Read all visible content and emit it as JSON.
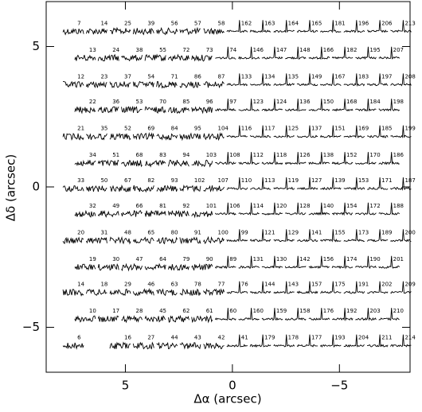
{
  "chart_data": {
    "type": "fiber-map",
    "xlabel": "Δα (arcsec)",
    "ylabel": "Δδ (arcsec)",
    "xlim": [
      8.7,
      -8.3
    ],
    "ylim": [
      -6.6,
      6.6
    ],
    "xticks": [
      5,
      0,
      {
        "value": -5,
        "label": "−5"
      }
    ],
    "yticks": [
      5,
      0,
      {
        "value": -5,
        "label": "−5"
      }
    ],
    "rows": [
      {
        "y": 5.6,
        "x": [
          7.43,
          6.34,
          5.24,
          4.15,
          3.06,
          1.97,
          0.87,
          -0.22,
          -1.31,
          -2.41,
          -3.5,
          -4.59,
          -5.69,
          -6.78,
          -7.87
        ],
        "labels": [
          "7",
          "14",
          "25",
          "39",
          "56",
          "57",
          "58",
          "162",
          "163",
          "164",
          "165",
          "181",
          "196",
          "206",
          "213"
        ]
      },
      {
        "y": 4.65,
        "x": [
          6.88,
          5.79,
          4.7,
          3.6,
          2.51,
          1.42,
          0.32,
          -0.77,
          -1.86,
          -2.95,
          -4.05,
          -5.14,
          -6.23,
          -7.32
        ],
        "labels": [
          "13",
          "24",
          "38",
          "55",
          "72",
          "73",
          "74",
          "146",
          "147",
          "148",
          "166",
          "182",
          "195",
          "207"
        ]
      },
      {
        "y": 3.7,
        "x": [
          7.43,
          6.34,
          5.24,
          4.15,
          3.06,
          1.97,
          0.87,
          -0.22,
          -1.31,
          -2.41,
          -3.5,
          -4.59,
          -5.69,
          -6.78,
          -7.87
        ],
        "labels": [
          "12",
          "23",
          "37",
          "54",
          "71",
          "86",
          "87",
          "133",
          "134",
          "135",
          "149",
          "167",
          "183",
          "197",
          "208"
        ]
      },
      {
        "y": 2.8,
        "x": [
          6.88,
          5.79,
          4.7,
          3.6,
          2.51,
          1.42,
          0.32,
          -0.77,
          -1.86,
          -2.95,
          -4.05,
          -5.14,
          -6.23,
          -7.32
        ],
        "labels": [
          "22",
          "36",
          "53",
          "70",
          "85",
          "96",
          "97",
          "123",
          "124",
          "136",
          "150",
          "168",
          "184",
          "198"
        ]
      },
      {
        "y": 1.85,
        "x": [
          7.43,
          6.34,
          5.24,
          4.15,
          3.06,
          1.97,
          0.87,
          -0.22,
          -1.31,
          -2.41,
          -3.5,
          -4.59,
          -5.69,
          -6.78,
          -7.87
        ],
        "labels": [
          "21",
          "35",
          "52",
          "69",
          "84",
          "95",
          "104",
          "116",
          "117",
          "125",
          "137",
          "151",
          "169",
          "185",
          "199"
        ]
      },
      {
        "y": 0.9,
        "x": [
          6.88,
          5.79,
          4.7,
          3.6,
          2.51,
          1.42,
          0.32,
          -0.77,
          -1.86,
          -2.95,
          -4.05,
          -5.14,
          -6.23,
          -7.32
        ],
        "labels": [
          "34",
          "51",
          "68",
          "83",
          "94",
          "103",
          "108",
          "112",
          "118",
          "126",
          "138",
          "152",
          "170",
          "186"
        ]
      },
      {
        "y": 0,
        "x": [
          7.43,
          6.34,
          5.24,
          4.15,
          3.06,
          1.97,
          0.87,
          -0.22,
          -1.31,
          -2.41,
          -3.5,
          -4.59,
          -5.69,
          -6.78,
          -7.87
        ],
        "labels": [
          "33",
          "50",
          "67",
          "82",
          "93",
          "102",
          "107",
          "110",
          "113",
          "119",
          "127",
          "139",
          "153",
          "171",
          "187"
        ]
      },
      {
        "y": -0.9,
        "x": [
          6.88,
          5.79,
          4.7,
          3.6,
          2.51,
          1.42,
          0.32,
          -0.77,
          -1.86,
          -2.95,
          -4.05,
          -5.14,
          -6.23,
          -7.32
        ],
        "labels": [
          "32",
          "49",
          "66",
          "81",
          "92",
          "101",
          "106",
          "114",
          "120",
          "128",
          "140",
          "154",
          "172",
          "188"
        ]
      },
      {
        "y": -1.85,
        "x": [
          7.43,
          6.34,
          5.24,
          4.15,
          3.06,
          1.97,
          0.87,
          -0.22,
          -1.31,
          -2.41,
          -3.5,
          -4.59,
          -5.69,
          -6.78,
          -7.87
        ],
        "labels": [
          "20",
          "31",
          "48",
          "65",
          "80",
          "91",
          "100",
          "99",
          "121",
          "129",
          "141",
          "155",
          "173",
          "189",
          "200"
        ]
      },
      {
        "y": -2.8,
        "x": [
          6.88,
          5.79,
          4.7,
          3.6,
          2.51,
          1.42,
          0.32,
          -0.77,
          -1.86,
          -2.95,
          -4.05,
          -5.14,
          -6.23,
          -7.32
        ],
        "labels": [
          "19",
          "30",
          "47",
          "64",
          "79",
          "90",
          "89",
          "131",
          "130",
          "142",
          "156",
          "174",
          "190",
          "201"
        ]
      },
      {
        "y": -3.7,
        "x": [
          7.43,
          6.34,
          5.24,
          4.15,
          3.06,
          1.97,
          0.87,
          -0.22,
          -1.31,
          -2.41,
          -3.5,
          -4.59,
          -5.69,
          -6.78,
          -7.87
        ],
        "labels": [
          "14",
          "18",
          "29",
          "46",
          "63",
          "78",
          "77",
          "76",
          "144",
          "143",
          "157",
          "175",
          "191",
          "202",
          "209"
        ]
      },
      {
        "y": -4.65,
        "x": [
          6.88,
          5.79,
          4.7,
          3.6,
          2.51,
          1.42,
          0.32,
          -0.77,
          -1.86,
          -2.95,
          -4.05,
          -5.14,
          -6.23,
          -7.32
        ],
        "labels": [
          "10",
          "17",
          "28",
          "45",
          "62",
          "61",
          "60",
          "160",
          "159",
          "158",
          "176",
          "192",
          "203",
          "210"
        ]
      },
      {
        "y": -5.6,
        "x": [
          7.43,
          5.24,
          4.15,
          3.06,
          1.97,
          0.87,
          -0.22,
          -1.31,
          -2.41,
          -3.5,
          -4.59,
          -5.69,
          -6.78,
          -7.87
        ],
        "labels": [
          "6",
          "16",
          "27",
          "44",
          "43",
          "42",
          "41",
          "179",
          "178",
          "177",
          "193",
          "204",
          "211",
          "214"
        ]
      }
    ]
  }
}
